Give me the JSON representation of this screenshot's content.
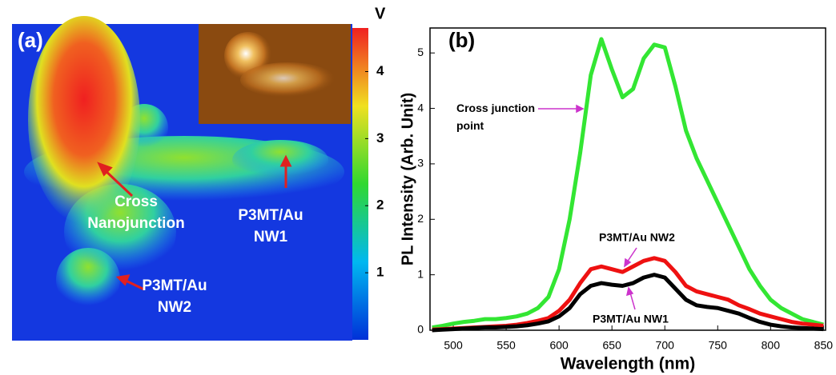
{
  "chart_data": [
    {
      "type": "image",
      "title": "(a)",
      "colorbar_label": "V",
      "colors": [
        "#0030d8",
        "#00b8f0",
        "#30d830",
        "#f0e020",
        "#f02020"
      ],
      "ylim": [
        0,
        4.65
      ],
      "yticks": [
        1,
        2,
        3,
        4
      ],
      "annotations": [
        {
          "lines": [
            "Cross",
            "Nanojunction"
          ]
        },
        {
          "lines": [
            "P3MT/Au",
            "NW1"
          ]
        },
        {
          "lines": [
            "P3MT/Au",
            "NW2"
          ]
        }
      ]
    },
    {
      "type": "line",
      "title": "(b)",
      "xlabel": "Wavelength (nm)",
      "ylabel": "PL Intensity (Arb. Unit)",
      "xlim": [
        478,
        852
      ],
      "ylim": [
        0,
        5.45
      ],
      "xticks": [
        500,
        550,
        600,
        650,
        700,
        750,
        800,
        850
      ],
      "yticks": [
        0,
        1,
        2,
        3,
        4,
        5
      ],
      "x": [
        480,
        490,
        500,
        510,
        520,
        530,
        540,
        550,
        560,
        570,
        580,
        590,
        600,
        610,
        620,
        630,
        640,
        650,
        660,
        670,
        680,
        690,
        700,
        710,
        720,
        730,
        740,
        750,
        760,
        770,
        780,
        790,
        800,
        810,
        820,
        830,
        840,
        850
      ],
      "series": [
        {
          "name": "Cross junction point",
          "color": "#33e633",
          "values": [
            0.05,
            0.08,
            0.12,
            0.15,
            0.17,
            0.2,
            0.2,
            0.22,
            0.25,
            0.3,
            0.4,
            0.6,
            1.1,
            2.0,
            3.2,
            4.6,
            5.25,
            4.7,
            4.2,
            4.35,
            4.9,
            5.15,
            5.1,
            4.4,
            3.6,
            3.1,
            2.7,
            2.3,
            1.9,
            1.5,
            1.1,
            0.8,
            0.55,
            0.4,
            0.3,
            0.2,
            0.15,
            0.1
          ]
        },
        {
          "name": "P3MT/Au NW2",
          "color": "#ee1111",
          "values": [
            0.01,
            0.02,
            0.03,
            0.04,
            0.05,
            0.06,
            0.07,
            0.08,
            0.1,
            0.13,
            0.17,
            0.22,
            0.35,
            0.55,
            0.85,
            1.1,
            1.15,
            1.1,
            1.05,
            1.15,
            1.25,
            1.3,
            1.25,
            1.05,
            0.8,
            0.7,
            0.65,
            0.6,
            0.55,
            0.45,
            0.38,
            0.3,
            0.25,
            0.2,
            0.15,
            0.12,
            0.1,
            0.08
          ]
        },
        {
          "name": "P3MT/Au NW1",
          "color": "#000000",
          "values": [
            0,
            0.01,
            0.02,
            0.03,
            0.04,
            0.05,
            0.05,
            0.06,
            0.07,
            0.09,
            0.12,
            0.16,
            0.25,
            0.4,
            0.65,
            0.8,
            0.85,
            0.82,
            0.8,
            0.85,
            0.95,
            1.0,
            0.95,
            0.75,
            0.55,
            0.45,
            0.42,
            0.4,
            0.35,
            0.3,
            0.22,
            0.15,
            0.1,
            0.07,
            0.05,
            0.04,
            0.03,
            0.02
          ]
        }
      ]
    }
  ]
}
